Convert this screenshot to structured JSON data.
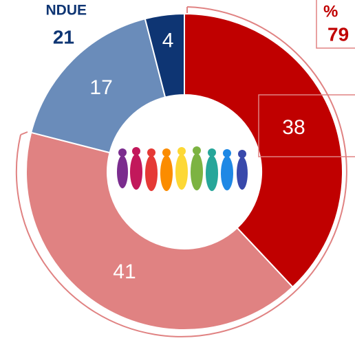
{
  "chart_data": {
    "type": "donut",
    "categories": [
      null,
      null,
      null,
      null
    ],
    "values": [
      38,
      41,
      17,
      4
    ],
    "colors": [
      "#c00000",
      "#e08282",
      "#6a8cba",
      "#0e3573"
    ],
    "label_colors": [
      "#ffffff",
      "#ffffff",
      "#ffffff",
      "#ffffff"
    ],
    "left_callout": {
      "label": "NDUE",
      "value": 21,
      "color": "#0e3573"
    },
    "right_callout": {
      "label": "%",
      "value": 79,
      "color": "#c00000"
    }
  }
}
